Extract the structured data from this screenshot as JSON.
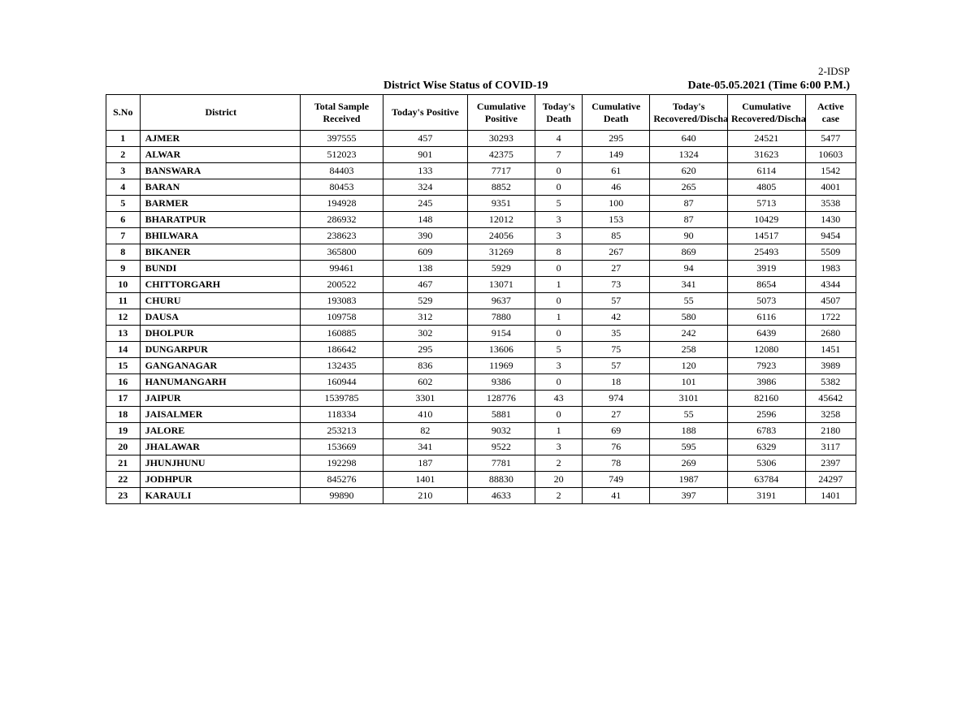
{
  "header": {
    "top_right": "2-IDSP",
    "title": "District Wise Status of  COVID-19",
    "date_label": "Date-05.05.2021 (Time 6:00 P.M.)"
  },
  "table": {
    "columns": [
      "S.No",
      "District",
      "Total Sample Received",
      "Today's Positive",
      "Cumulative Positive",
      "Today's Death",
      "Cumulative Death",
      "Today's Recovered/Discharged",
      "Cumulative Recovered/Discharged",
      "Active case"
    ],
    "rows": [
      {
        "sno": "1",
        "district": "AJMER",
        "sample": "397555",
        "today_pos": "457",
        "cum_pos": "30293",
        "today_death": "4",
        "cum_death": "295",
        "today_rec": "640",
        "cum_rec": "24521",
        "active": "5477"
      },
      {
        "sno": "2",
        "district": "ALWAR",
        "sample": "512023",
        "today_pos": "901",
        "cum_pos": "42375",
        "today_death": "7",
        "cum_death": "149",
        "today_rec": "1324",
        "cum_rec": "31623",
        "active": "10603"
      },
      {
        "sno": "3",
        "district": "BANSWARA",
        "sample": "84403",
        "today_pos": "133",
        "cum_pos": "7717",
        "today_death": "0",
        "cum_death": "61",
        "today_rec": "620",
        "cum_rec": "6114",
        "active": "1542"
      },
      {
        "sno": "4",
        "district": "BARAN",
        "sample": "80453",
        "today_pos": "324",
        "cum_pos": "8852",
        "today_death": "0",
        "cum_death": "46",
        "today_rec": "265",
        "cum_rec": "4805",
        "active": "4001"
      },
      {
        "sno": "5",
        "district": "BARMER",
        "sample": "194928",
        "today_pos": "245",
        "cum_pos": "9351",
        "today_death": "5",
        "cum_death": "100",
        "today_rec": "87",
        "cum_rec": "5713",
        "active": "3538"
      },
      {
        "sno": "6",
        "district": "BHARATPUR",
        "sample": "286932",
        "today_pos": "148",
        "cum_pos": "12012",
        "today_death": "3",
        "cum_death": "153",
        "today_rec": "87",
        "cum_rec": "10429",
        "active": "1430"
      },
      {
        "sno": "7",
        "district": "BHILWARA",
        "sample": "238623",
        "today_pos": "390",
        "cum_pos": "24056",
        "today_death": "3",
        "cum_death": "85",
        "today_rec": "90",
        "cum_rec": "14517",
        "active": "9454"
      },
      {
        "sno": "8",
        "district": "BIKANER",
        "sample": "365800",
        "today_pos": "609",
        "cum_pos": "31269",
        "today_death": "8",
        "cum_death": "267",
        "today_rec": "869",
        "cum_rec": "25493",
        "active": "5509"
      },
      {
        "sno": "9",
        "district": "BUNDI",
        "sample": "99461",
        "today_pos": "138",
        "cum_pos": "5929",
        "today_death": "0",
        "cum_death": "27",
        "today_rec": "94",
        "cum_rec": "3919",
        "active": "1983"
      },
      {
        "sno": "10",
        "district": "CHITTORGARH",
        "sample": "200522",
        "today_pos": "467",
        "cum_pos": "13071",
        "today_death": "1",
        "cum_death": "73",
        "today_rec": "341",
        "cum_rec": "8654",
        "active": "4344"
      },
      {
        "sno": "11",
        "district": "CHURU",
        "sample": "193083",
        "today_pos": "529",
        "cum_pos": "9637",
        "today_death": "0",
        "cum_death": "57",
        "today_rec": "55",
        "cum_rec": "5073",
        "active": "4507"
      },
      {
        "sno": "12",
        "district": "DAUSA",
        "sample": "109758",
        "today_pos": "312",
        "cum_pos": "7880",
        "today_death": "1",
        "cum_death": "42",
        "today_rec": "580",
        "cum_rec": "6116",
        "active": "1722"
      },
      {
        "sno": "13",
        "district": "DHOLPUR",
        "sample": "160885",
        "today_pos": "302",
        "cum_pos": "9154",
        "today_death": "0",
        "cum_death": "35",
        "today_rec": "242",
        "cum_rec": "6439",
        "active": "2680"
      },
      {
        "sno": "14",
        "district": "DUNGARPUR",
        "sample": "186642",
        "today_pos": "295",
        "cum_pos": "13606",
        "today_death": "5",
        "cum_death": "75",
        "today_rec": "258",
        "cum_rec": "12080",
        "active": "1451"
      },
      {
        "sno": "15",
        "district": "GANGANAGAR",
        "sample": "132435",
        "today_pos": "836",
        "cum_pos": "11969",
        "today_death": "3",
        "cum_death": "57",
        "today_rec": "120",
        "cum_rec": "7923",
        "active": "3989"
      },
      {
        "sno": "16",
        "district": "HANUMANGARH",
        "sample": "160944",
        "today_pos": "602",
        "cum_pos": "9386",
        "today_death": "0",
        "cum_death": "18",
        "today_rec": "101",
        "cum_rec": "3986",
        "active": "5382"
      },
      {
        "sno": "17",
        "district": "JAIPUR",
        "sample": "1539785",
        "today_pos": "3301",
        "cum_pos": "128776",
        "today_death": "43",
        "cum_death": "974",
        "today_rec": "3101",
        "cum_rec": "82160",
        "active": "45642"
      },
      {
        "sno": "18",
        "district": "JAISALMER",
        "sample": "118334",
        "today_pos": "410",
        "cum_pos": "5881",
        "today_death": "0",
        "cum_death": "27",
        "today_rec": "55",
        "cum_rec": "2596",
        "active": "3258"
      },
      {
        "sno": "19",
        "district": "JALORE",
        "sample": "253213",
        "today_pos": "82",
        "cum_pos": "9032",
        "today_death": "1",
        "cum_death": "69",
        "today_rec": "188",
        "cum_rec": "6783",
        "active": "2180"
      },
      {
        "sno": "20",
        "district": "JHALAWAR",
        "sample": "153669",
        "today_pos": "341",
        "cum_pos": "9522",
        "today_death": "3",
        "cum_death": "76",
        "today_rec": "595",
        "cum_rec": "6329",
        "active": "3117"
      },
      {
        "sno": "21",
        "district": "JHUNJHUNU",
        "sample": "192298",
        "today_pos": "187",
        "cum_pos": "7781",
        "today_death": "2",
        "cum_death": "78",
        "today_rec": "269",
        "cum_rec": "5306",
        "active": "2397"
      },
      {
        "sno": "22",
        "district": "JODHPUR",
        "sample": "845276",
        "today_pos": "1401",
        "cum_pos": "88830",
        "today_death": "20",
        "cum_death": "749",
        "today_rec": "1987",
        "cum_rec": "63784",
        "active": "24297"
      },
      {
        "sno": "23",
        "district": "KARAULI",
        "sample": "99890",
        "today_pos": "210",
        "cum_pos": "4633",
        "today_death": "2",
        "cum_death": "41",
        "today_rec": "397",
        "cum_rec": "3191",
        "active": "1401"
      }
    ]
  }
}
